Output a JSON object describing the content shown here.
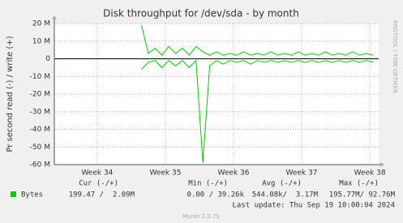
{
  "chart_data": {
    "type": "line",
    "title": "Disk throughput for /dev/sda - by month",
    "y_label": "Pr second read (-) / write (+)",
    "side_label": "RRDTOOL / TOBI OETIKER",
    "x": [
      34.65,
      34.75,
      34.85,
      34.95,
      35.05,
      35.15,
      35.25,
      35.35,
      35.45,
      35.55,
      35.65,
      35.75,
      35.85,
      35.95,
      36.05,
      36.15,
      36.25,
      36.35,
      36.45,
      36.55,
      36.65,
      36.75,
      36.85,
      36.95,
      37.05,
      37.15,
      37.25,
      37.35,
      37.45,
      37.55,
      37.65,
      37.75,
      37.85,
      37.95,
      38.05
    ],
    "series": [
      {
        "color": "#00cc00",
        "values": [
          -6,
          -2,
          -1,
          -5,
          -1,
          -4,
          -1,
          -5,
          -1,
          -59,
          -4,
          -1,
          -3,
          -1,
          -2,
          -1,
          -3,
          -1,
          -2,
          -1,
          -2,
          -1,
          -2,
          -1,
          -2,
          -1,
          -2,
          -1,
          -2,
          -1,
          -2,
          -1,
          -2,
          -1,
          -2
        ]
      },
      {
        "name": "Bytes",
        "color": "#00cc00",
        "values": [
          19,
          3,
          6,
          2,
          7,
          3,
          6,
          2,
          7,
          4,
          2,
          4,
          2,
          3,
          2,
          4,
          2,
          3,
          2,
          4,
          2,
          3,
          2,
          4,
          2,
          3,
          2,
          4,
          2,
          3,
          2,
          4,
          2,
          3,
          2
        ]
      }
    ],
    "xlim": [
      33.37,
      38.13
    ],
    "xticks": [
      {
        "value": 34,
        "label": "Week 34"
      },
      {
        "value": 35,
        "label": "Week 35"
      },
      {
        "value": 36,
        "label": "Week 36"
      },
      {
        "value": 37,
        "label": "Week 37"
      },
      {
        "value": 38,
        "label": "Week 38"
      }
    ],
    "ylim": [
      -60,
      20
    ],
    "yticks": [
      {
        "value": 20,
        "label": "20 M"
      },
      {
        "value": 10,
        "label": "10 M"
      },
      0,
      {
        "value": -10,
        "label": "-10 M"
      },
      {
        "value": -20,
        "label": "-20 M"
      },
      {
        "value": -30,
        "label": "-30 M"
      },
      {
        "value": -40,
        "label": "-40 M"
      },
      {
        "value": -50,
        "label": "-50 M"
      },
      {
        "value": -60,
        "label": "-60 M"
      }
    ],
    "grid": true,
    "legend_table": {
      "headers": [
        "Cur (-/+)",
        "Min (-/+)",
        "Avg (-/+)",
        "Max (-/+)"
      ],
      "row": [
        "199.47 /  2.09M",
        "0.00 / 39.26k",
        "544.08k/  3.17M",
        "195.77M/ 92.76M"
      ]
    },
    "last_update": "Last update: Thu Sep 19 10:00:04 2024",
    "footer": "Munin 2.0.75"
  }
}
